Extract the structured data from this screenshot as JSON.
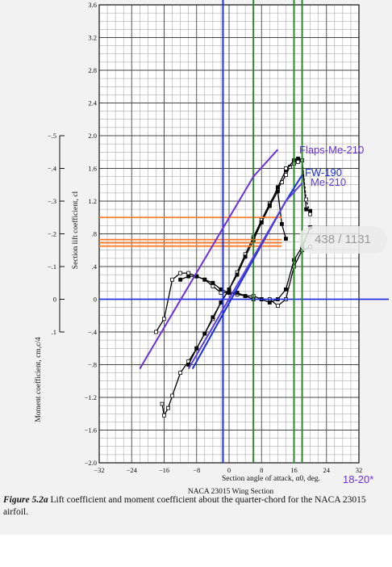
{
  "chart_data": {
    "type": "line",
    "title": "NACA 23015 Wing Section",
    "xlabel": "Section angle of attack, α0, deg.",
    "ylabel": "Section lift coefficient, cl",
    "y2label": "Moment coefficient, cm,c/4",
    "xlim": [
      -32,
      32
    ],
    "ylim": [
      -2.0,
      3.6
    ],
    "y2lim": [
      -0.5,
      0.1
    ],
    "grid": true,
    "x_ticks": [
      "−32",
      "−24",
      "−16",
      "−8",
      "0",
      "8",
      "16",
      "24",
      "32"
    ],
    "y_ticks": [
      "−2.0",
      "−1.6",
      "−1.2",
      "−.8",
      "−.4",
      "0",
      ".4",
      ".8",
      "1.2",
      "1.6",
      "2.0",
      "2.4",
      "2.8",
      "3.2",
      "3.6"
    ],
    "y2_ticks": [
      "−.5",
      "−.4",
      "−.3",
      "−.2",
      "−.1",
      "0",
      ".1"
    ],
    "series": [
      {
        "name": "",
        "color": "#000000",
        "marker": "square-open",
        "x": [
          -16.5,
          -16,
          -15,
          -14,
          -12,
          -10,
          -8,
          -6,
          -4,
          -2,
          0,
          2,
          4,
          6,
          8,
          10,
          12,
          13,
          14,
          15
        ],
        "y": [
          -1.28,
          -1.42,
          -1.33,
          -1.18,
          -0.9,
          -0.76,
          -0.6,
          -0.42,
          -0.24,
          -0.04,
          0.12,
          0.33,
          0.55,
          0.76,
          0.97,
          1.17,
          1.35,
          1.43,
          1.52,
          1.62
        ]
      },
      {
        "name": "",
        "color": "#000000",
        "marker": "square-filled",
        "x": [
          -10,
          -8,
          -6,
          -4,
          -2,
          0,
          2,
          4,
          6,
          8,
          10,
          12,
          14,
          16,
          17,
          18,
          19,
          20
        ],
        "y": [
          -0.8,
          -0.6,
          -0.42,
          -0.22,
          -0.04,
          0.12,
          0.3,
          0.52,
          0.72,
          0.94,
          1.15,
          1.37,
          1.58,
          1.7,
          1.72,
          1.7,
          1.1,
          1.08
        ]
      },
      {
        "name": "",
        "color": "#000000",
        "marker": "square-filled",
        "x": [
          6,
          8,
          10,
          12,
          13,
          14
        ],
        "y": [
          0.74,
          0.94,
          1.14,
          1.32,
          0.92,
          0.74
        ]
      },
      {
        "name": "",
        "color": "#000000",
        "marker": "square-open",
        "x": [
          14,
          16,
          17,
          18,
          19,
          20
        ],
        "y": [
          1.6,
          1.66,
          1.68,
          1.7,
          1.22,
          1.04
        ]
      },
      {
        "name": "",
        "color": "#000000",
        "marker": "square-open",
        "x": [
          -18,
          -16,
          -14,
          -12,
          -10,
          -8,
          -6,
          -4,
          -2,
          0,
          2,
          4,
          6,
          8,
          10,
          12,
          14,
          16,
          18,
          20
        ],
        "y": [
          0.1,
          0.06,
          -0.06,
          -0.08,
          -0.08,
          -0.07,
          -0.06,
          -0.04,
          -0.02,
          -0.02,
          -0.015,
          -0.01,
          -0.01,
          0.0,
          0.0,
          0.02,
          0.0,
          -0.1,
          -0.15,
          -0.16
        ]
      },
      {
        "name": "",
        "color": "#000000",
        "marker": "square-filled",
        "x": [
          -12,
          -10,
          -8,
          -6,
          -4,
          -2,
          0,
          2,
          4,
          6,
          8,
          10,
          12,
          14,
          16,
          18,
          20
        ],
        "y": [
          -0.06,
          -0.07,
          -0.07,
          -0.06,
          -0.05,
          -0.03,
          -0.02,
          -0.02,
          -0.01,
          0.0,
          0.0,
          0.01,
          0.0,
          -0.03,
          -0.12,
          -0.16,
          -0.22
        ]
      }
    ],
    "overlays": {
      "lift_lines": [
        {
          "label": "Flaps-Me-210",
          "color": "#6a2fd8",
          "x": [
            -22,
            6,
            12
          ],
          "y": [
            -0.85,
            1.5,
            1.83
          ]
        },
        {
          "label": "FW-190",
          "color": "#1a2de0",
          "x": [
            -9,
            14,
            18
          ],
          "y": [
            -0.85,
            1.2,
            1.52
          ]
        },
        {
          "label": "Me-210",
          "color": "#5a3fd8",
          "x": [
            -10,
            14,
            18
          ],
          "y": [
            -0.85,
            1.2,
            1.42
          ]
        }
      ],
      "vertical_lines": [
        {
          "color": "#2030e0",
          "x": -1.5
        },
        {
          "color": "#2a8a2a",
          "x": 6
        },
        {
          "color": "#2a8a2a",
          "x": 16
        },
        {
          "color": "#2a8a2a",
          "x": 18
        }
      ],
      "horizontal_lines": [
        {
          "color": "#2030e0",
          "y": 0,
          "x_from": -32,
          "x_to": 40
        },
        {
          "color": "#ff7a2a",
          "y": 1.0,
          "x_from": -32,
          "x_to": 13
        },
        {
          "color": "#ff7a2a",
          "y": 0.73,
          "x_from": -32,
          "x_to": 13
        },
        {
          "color": "#ff7a2a",
          "y": 0.69,
          "x_from": -32,
          "x_to": 13
        },
        {
          "color": "#ff7a2a",
          "y": 0.65,
          "x_from": -32,
          "x_to": 13
        }
      ],
      "xlabel_note": {
        "text": "18-20*",
        "color": "#6a2fd8"
      }
    }
  },
  "caption": {
    "label": "Figure 5.2a",
    "text": "  Lift coefficient and moment coefficient about the quarter-chord for the NACA 23015 airfoil."
  },
  "page_indicator": "438 / 1131"
}
